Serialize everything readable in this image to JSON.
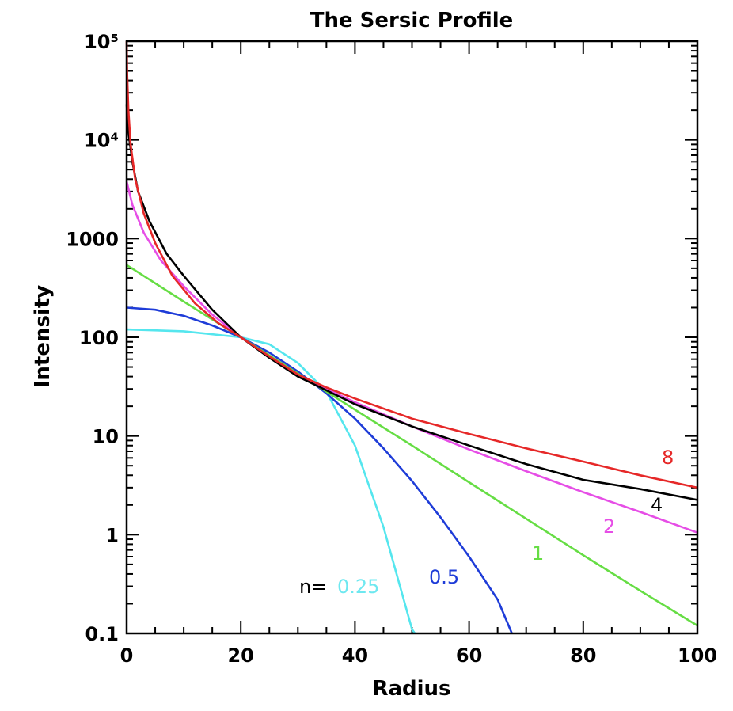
{
  "chart_data": {
    "type": "line",
    "title": "The Sersic Profile",
    "xlabel": "Radius",
    "ylabel": "Intensity",
    "xlim": [
      0,
      100
    ],
    "ylim": [
      0.1,
      100000
    ],
    "yscale": "log",
    "grid": false,
    "x_tick_labels": [
      "0",
      "20",
      "40",
      "60",
      "80",
      "100"
    ],
    "y_tick_labels": [
      "0.1",
      "1",
      "10",
      "100",
      "1000",
      "10⁴",
      "10⁵"
    ],
    "annotation_prefix": "n=",
    "series": [
      {
        "name": "0.25",
        "color": "#55e6ee",
        "label_color": "#6ee8f0",
        "x": [
          0,
          10,
          20,
          25,
          30,
          35,
          40,
          45,
          50,
          50.5
        ],
        "y": [
          120,
          115,
          100,
          85,
          55,
          28,
          8,
          1.2,
          0.11,
          0.1
        ]
      },
      {
        "name": "0.5",
        "color": "#1e3cd8",
        "label_color": "#1e3cd8",
        "x": [
          0,
          5,
          10,
          15,
          20,
          25,
          30,
          35,
          40,
          45,
          50,
          55,
          60,
          65,
          67.5
        ],
        "y": [
          200,
          190,
          165,
          132,
          100,
          70,
          45,
          27,
          15,
          7.5,
          3.5,
          1.5,
          0.6,
          0.22,
          0.1
        ]
      },
      {
        "name": "1",
        "color": "#66dd44",
        "label_color": "#66dd44",
        "x": [
          0,
          10,
          20,
          30,
          40,
          50,
          60,
          70,
          80,
          90,
          100
        ],
        "y": [
          540,
          230,
          100,
          43,
          18.5,
          8,
          3.4,
          1.45,
          0.62,
          0.27,
          0.12
        ]
      },
      {
        "name": "2",
        "color": "#e64ee6",
        "label_color": "#e64ee6",
        "x": [
          0,
          1,
          3,
          6,
          10,
          15,
          20,
          25,
          30,
          35,
          40,
          50,
          60,
          70,
          80,
          90,
          100
        ],
        "y": [
          3800,
          2200,
          1150,
          600,
          330,
          170,
          100,
          63,
          42,
          30,
          22,
          12.5,
          7.3,
          4.4,
          2.7,
          1.7,
          1.05
        ]
      },
      {
        "name": "4",
        "color": "#000000",
        "label_color": "#000000",
        "x": [
          0,
          0.3,
          1,
          2,
          4,
          7,
          10,
          15,
          20,
          25,
          30,
          35,
          40,
          50,
          60,
          70,
          80,
          90,
          100
        ],
        "y": [
          23000,
          12000,
          6000,
          3000,
          1500,
          700,
          420,
          190,
          100,
          62,
          40,
          29,
          21,
          12.5,
          8,
          5.2,
          3.6,
          2.9,
          2.25
        ]
      },
      {
        "name": "8",
        "color": "#e62828",
        "label_color": "#e62828",
        "x": [
          0,
          0.1,
          0.3,
          0.7,
          1.5,
          3,
          5,
          8,
          12,
          16,
          20,
          25,
          30,
          35,
          40,
          50,
          60,
          70,
          80,
          90,
          100
        ],
        "y": [
          100000,
          45000,
          20000,
          9000,
          4000,
          1800,
          900,
          420,
          220,
          140,
          100,
          64,
          42,
          31,
          24,
          15,
          10.5,
          7.5,
          5.5,
          4,
          3
        ]
      }
    ]
  }
}
